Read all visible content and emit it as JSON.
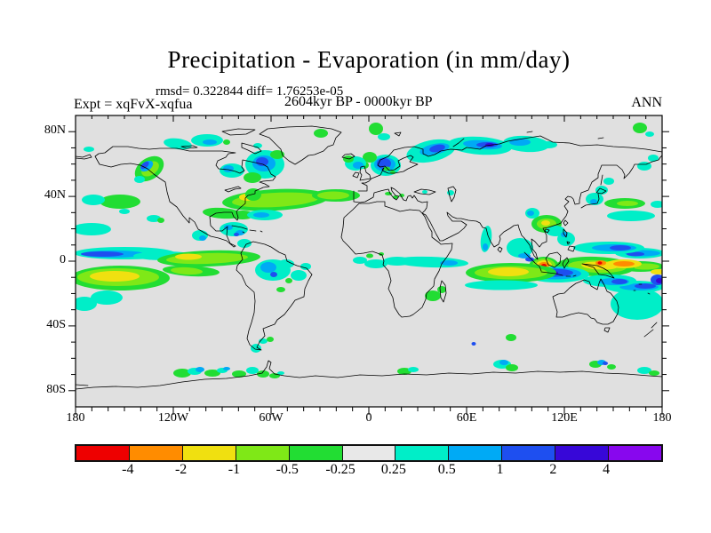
{
  "title": "Precipitation - Evaporation (in mm/day)",
  "annotations": {
    "stats_line": "rmsd= 0.322844 diff= 1.76253e-05",
    "period_line": "2604kyr BP - 0000kyr BP",
    "experiment_line": "Expt = xqFvX-xqfua",
    "season": "ANN"
  },
  "axes": {
    "lon_ticks": [
      {
        "deg": -180,
        "label": "180"
      },
      {
        "deg": -120,
        "label": "120W"
      },
      {
        "deg": -60,
        "label": "60W"
      },
      {
        "deg": 0,
        "label": "0"
      },
      {
        "deg": 60,
        "label": "60E"
      },
      {
        "deg": 120,
        "label": "120E"
      },
      {
        "deg": 180,
        "label": "180"
      }
    ],
    "lat_ticks": [
      {
        "deg": 80,
        "label": "80N"
      },
      {
        "deg": 40,
        "label": "40N"
      },
      {
        "deg": 0,
        "label": "0"
      },
      {
        "deg": -40,
        "label": "40S"
      },
      {
        "deg": -80,
        "label": "80S"
      }
    ],
    "lon_minor_step": 10,
    "lon_major_step": 60,
    "lat_minor_step": 10,
    "lat_major_step": 40
  },
  "colorbar": {
    "labels": [
      "-4",
      "-2",
      "-1",
      "-0.5",
      "-0.25",
      "0.25",
      "0.5",
      "1",
      "2",
      "4"
    ],
    "colors": [
      "#EE0000",
      "#FF8C00",
      "#F0E010",
      "#7FE817",
      "#22DD33",
      "#E8E8E8",
      "#00EEC8",
      "#00AAF5",
      "#1E4FF0",
      "#3707D8",
      "#8807EE"
    ]
  },
  "map": {
    "background": "#E0E0E0",
    "coastline_color": "#000000"
  },
  "chart_data": {
    "type": "heatmap",
    "subtype": "filled_contour_world_map",
    "projection": "equirectangular",
    "title": "Precipitation - Evaporation (in mm/day)",
    "units": "mm/day",
    "season": "ANN",
    "experiment": "xqFvX-xqfua",
    "period_difference": "2604kyr BP - 0000kyr BP",
    "rmsd": 0.322844,
    "diff": 1.76253e-05,
    "lon_range": [
      -180,
      180
    ],
    "lat_range": [
      -90,
      90
    ],
    "contour_levels": [
      -4,
      -2,
      -1,
      -0.5,
      -0.25,
      0.25,
      0.5,
      1,
      2,
      4
    ],
    "level_colors": {
      "below_-4": "#EE0000",
      "-4_to_-2": "#FF8C00",
      "-2_to_-1": "#F0E010",
      "-1_to_-0.5": "#7FE817",
      "-0.5_to_-0.25": "#22DD33",
      "-0.25_to_0.25": "#E8E8E8",
      "0.25_to_0.5": "#00EEC8",
      "0.5_to_1": "#00AAF5",
      "1_to_2": "#1E4FF0",
      "2_to_4": "#3707D8",
      "above_4": "#8807EE"
    },
    "notable_anomalies": [
      "Wet band (cyan/blue, +0.5 to +2) along equatorial Pacific ~2-8N from dateline to ~110W",
      "Dry band (green with yellow core, -1 to -2) in south-equatorial Pacific ~5-12S, 180-110W",
      "Dry band with yellow core across North Atlantic ~33-40N from US east coast to ~10W",
      "Strong wet/dry dipole over Maritime Continent; red spot (<-4) near Sumatra and orange core (-2 to -4) over New Guinea flanked by blue wet bands",
      "Dry band with yellow core in equatorial Indian Ocean ~5-10S, 55-100E",
      "Wet band (cyan with blue cores, +0.5 to +2) along Arctic coast of Scandinavia and Siberia",
      "Wet patches (blue) in Labrador Sea / Davis Strait and Norwegian Sea",
      "Green/blue dry-wet streak along Gulf of Alaska coast",
      "Scattered wet/dry patches along Antarctic coastline ~60-70S"
    ]
  }
}
